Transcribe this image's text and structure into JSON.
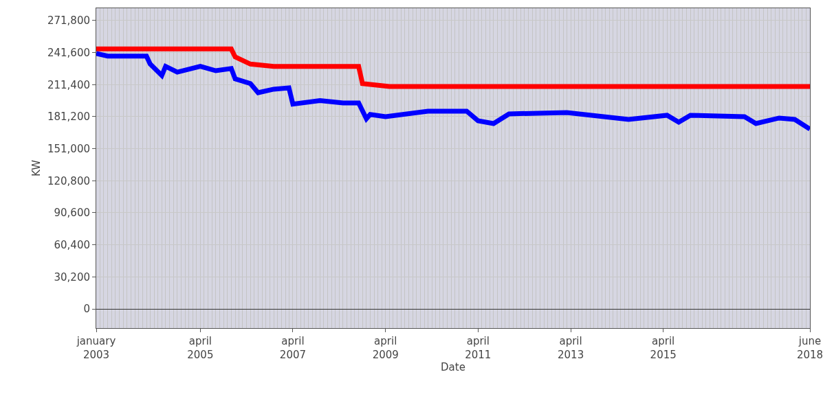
{
  "chart_data": {
    "type": "line",
    "xlabel": "Date",
    "ylabel": "KW",
    "xlim": [
      "2003-01",
      "2018-06"
    ],
    "xticks": [
      {
        "value": "2003-01",
        "label": "january 2003"
      },
      {
        "value": "2005-04",
        "label": "april 2005"
      },
      {
        "value": "2007-04",
        "label": "april 2007"
      },
      {
        "value": "2009-04",
        "label": "april 2009"
      },
      {
        "value": "2011-04",
        "label": "april 2011"
      },
      {
        "value": "2013-04",
        "label": "april 2013"
      },
      {
        "value": "2015-04",
        "label": "april 2015"
      },
      {
        "value": "2018-06",
        "label": "june 2018"
      }
    ],
    "ylim": [
      -18100,
      283400
    ],
    "yticks": [
      {
        "value": 0,
        "label": "0"
      },
      {
        "value": 30200,
        "label": "30,200"
      },
      {
        "value": 60400,
        "label": "60,400"
      },
      {
        "value": 90600,
        "label": "90,600"
      },
      {
        "value": 120800,
        "label": "120,800"
      },
      {
        "value": 151000,
        "label": "151,000"
      },
      {
        "value": 181200,
        "label": "181,200"
      },
      {
        "value": 211400,
        "label": "211,400"
      },
      {
        "value": 241600,
        "label": "241,600"
      },
      {
        "value": 271800,
        "label": "271,800"
      }
    ],
    "grid": true,
    "marker": "none",
    "line_style": "solid",
    "series": [
      {
        "color": "#ff0000",
        "x": [
          "2003-01",
          "2005-12",
          "2006-01",
          "2006-05",
          "2006-11",
          "2008-09",
          "2008-10",
          "2009-05",
          "2018-06"
        ],
        "values": [
          245000,
          245000,
          237500,
          230800,
          228600,
          228600,
          212400,
          209700,
          209700
        ]
      },
      {
        "color": "#0000ff",
        "x": [
          "2003-01",
          "2003-04",
          "2004-02",
          "2004-03",
          "2004-06",
          "2004-07",
          "2004-10",
          "2005-04",
          "2005-08",
          "2005-12",
          "2006-01",
          "2006-05",
          "2006-07",
          "2006-11",
          "2007-03",
          "2007-04",
          "2007-11",
          "2008-05",
          "2008-09",
          "2008-11",
          "2008-12",
          "2009-04",
          "2010-03",
          "2011-01",
          "2011-04",
          "2011-08",
          "2011-12",
          "2013-03",
          "2014-07",
          "2015-05",
          "2015-08",
          "2015-11",
          "2017-01",
          "2017-04",
          "2017-10",
          "2018-02",
          "2018-06"
        ],
        "values": [
          240700,
          238300,
          238300,
          230800,
          220000,
          228600,
          223200,
          228600,
          224500,
          226600,
          216800,
          212400,
          203800,
          207100,
          208400,
          193000,
          196300,
          194100,
          194100,
          179200,
          183300,
          181200,
          186400,
          186400,
          177300,
          174700,
          183800,
          185100,
          178600,
          182500,
          176000,
          182500,
          181200,
          174700,
          179900,
          178600,
          169500
        ]
      }
    ]
  }
}
